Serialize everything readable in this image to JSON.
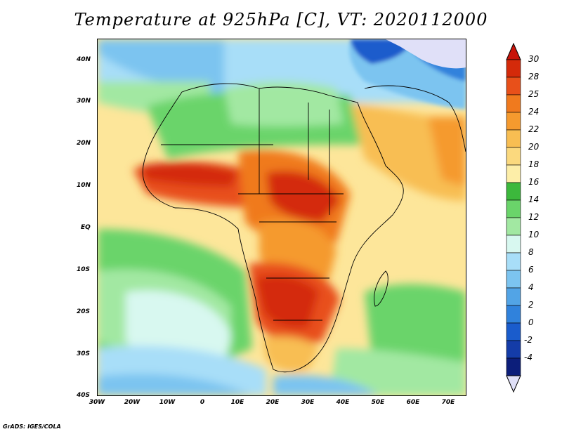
{
  "title": "Temperature at 925hPa [C], VT: 2020112000",
  "credit": "GrADS: IGES/COLA",
  "map": {
    "lat_ticks": [
      "40N",
      "30N",
      "20N",
      "10N",
      "EQ",
      "10S",
      "20S",
      "30S",
      "40S"
    ],
    "lon_ticks": [
      "30W",
      "20W",
      "10W",
      "0",
      "10E",
      "20E",
      "30E",
      "40E",
      "50E",
      "60E",
      "70E"
    ],
    "lat_range": [
      -40,
      45
    ],
    "lon_range": [
      -30,
      75
    ]
  },
  "colorbar": {
    "labels": [
      "30",
      "28",
      "25",
      "24",
      "22",
      "20",
      "18",
      "16",
      "14",
      "12",
      "10",
      "8",
      "6",
      "4",
      "2",
      "0",
      "-2",
      "-4"
    ],
    "colors": [
      "#d42a0a",
      "#e8501a",
      "#f07a1e",
      "#f59a2e",
      "#f8be52",
      "#fbd97e",
      "#fdeea8",
      "#3cb83c",
      "#6ad46a",
      "#a2e8a2",
      "#d8f8f0",
      "#a8def8",
      "#7cc4f0",
      "#52a4e6",
      "#3082dc",
      "#1a5ccc",
      "#143ca8",
      "#0c1e7a"
    ],
    "over_color": "#c8140a",
    "under_color": "#e0e0f8"
  },
  "regions": {
    "west_africa_hot": "#e8501a",
    "central_africa_hot": "#f07a1e",
    "southern_africa_hot": "#d42a0a",
    "sahara_green": "#6ad46a",
    "europe_blue": "#7cc4f0",
    "asia_cold": "#1a5ccc",
    "ocean_yellow": "#fbd97e"
  }
}
